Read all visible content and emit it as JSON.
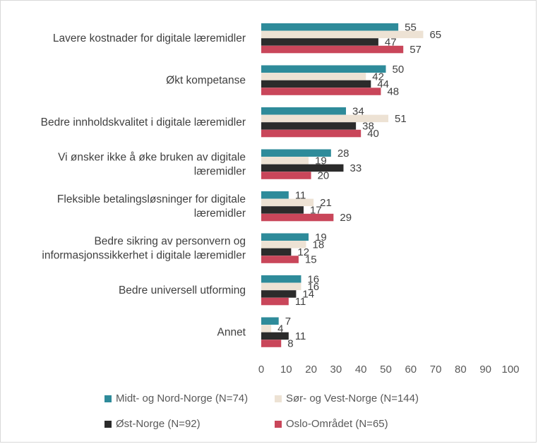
{
  "chart_data": {
    "type": "bar",
    "orientation": "horizontal",
    "categories": [
      [
        "Lavere kostnader for digitale læremidler"
      ],
      [
        "Økt kompetanse"
      ],
      [
        "Bedre innholdskvalitet i digitale læremidler"
      ],
      [
        "Vi ønsker ikke å øke bruken av digitale",
        "læremidler"
      ],
      [
        "Fleksible betalingsløsninger for digitale",
        "læremidler"
      ],
      [
        "Bedre sikring av personvern og",
        "informasjonssikkerhet i digitale læremidler"
      ],
      [
        "Bedre universell utforming"
      ],
      [
        "Annet"
      ]
    ],
    "series": [
      {
        "name": "Midt- og Nord-Norge (N=74)",
        "color": "#2e8b9a",
        "values": [
          55,
          50,
          34,
          28,
          11,
          19,
          16,
          7
        ]
      },
      {
        "name": "Sør- og Vest-Norge (N=144)",
        "color": "#ede2d4",
        "values": [
          65,
          42,
          51,
          19,
          21,
          18,
          16,
          4
        ]
      },
      {
        "name": "Øst-Norge (N=92)",
        "color": "#2b2b2b",
        "values": [
          47,
          44,
          38,
          33,
          17,
          12,
          14,
          11
        ]
      },
      {
        "name": "Oslo-Området (N=65)",
        "color": "#c9465a",
        "values": [
          57,
          48,
          40,
          20,
          29,
          15,
          11,
          8
        ]
      }
    ],
    "xlim": [
      0,
      100
    ],
    "xticks": [
      "0",
      "10",
      "20",
      "30",
      "40",
      "50",
      "60",
      "70",
      "80",
      "90",
      "100"
    ],
    "grid": false,
    "legend_position": "bottom"
  }
}
